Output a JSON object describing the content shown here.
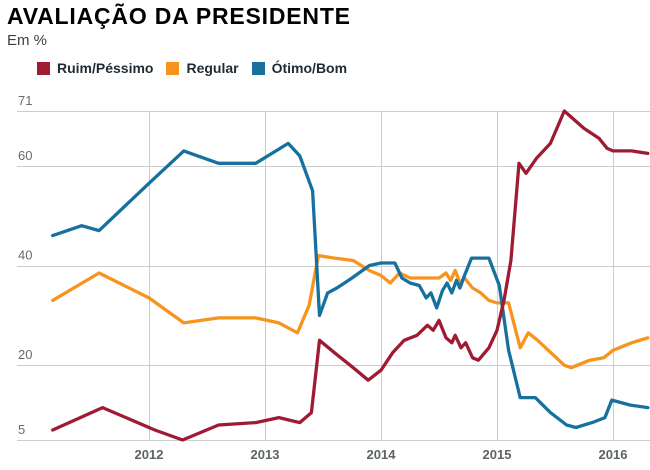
{
  "header": {
    "title": "AVALIAÇÃO DA PRESIDENTE",
    "subtitle": "Em %"
  },
  "legend": [
    {
      "label": "Ruim/Péssimo",
      "color": "#9f1b33"
    },
    {
      "label": "Regular",
      "color": "#f7941e"
    },
    {
      "label": "Ótimo/Bom",
      "color": "#16719e"
    }
  ],
  "chart_data": {
    "type": "line",
    "title": "AVALIAÇÃO DA PRESIDENTE",
    "unit": "Em %",
    "grid": true,
    "legend_position": "top",
    "x_ticks": [
      2012,
      2013,
      2014,
      2015,
      2016
    ],
    "y_ticks": [
      5,
      20,
      40,
      60,
      71
    ],
    "x_range": [
      2011.17,
      2016.3
    ],
    "y_range": [
      5,
      71
    ],
    "series": [
      {
        "id": "ruim-pessimo",
        "name": "Ruim/Péssimo",
        "color": "#9f1b33",
        "points": [
          [
            2011.17,
            7
          ],
          [
            2011.6,
            11.5
          ],
          [
            2012.05,
            7
          ],
          [
            2012.29,
            5
          ],
          [
            2012.6,
            8
          ],
          [
            2012.92,
            8.5
          ],
          [
            2013.12,
            9.5
          ],
          [
            2013.3,
            8.5
          ],
          [
            2013.4,
            10.5
          ],
          [
            2013.47,
            25
          ],
          [
            2013.6,
            22.5
          ],
          [
            2013.76,
            19.5
          ],
          [
            2013.89,
            17
          ],
          [
            2014.0,
            19
          ],
          [
            2014.1,
            22.5
          ],
          [
            2014.2,
            25
          ],
          [
            2014.31,
            26
          ],
          [
            2014.4,
            28
          ],
          [
            2014.45,
            27
          ],
          [
            2014.5,
            29
          ],
          [
            2014.56,
            25.5
          ],
          [
            2014.61,
            24.5
          ],
          [
            2014.64,
            26
          ],
          [
            2014.69,
            23.5
          ],
          [
            2014.73,
            24.5
          ],
          [
            2014.79,
            21.5
          ],
          [
            2014.84,
            21
          ],
          [
            2014.93,
            23.5
          ],
          [
            2015.0,
            27
          ],
          [
            2015.06,
            33
          ],
          [
            2015.12,
            41
          ],
          [
            2015.19,
            60.5
          ],
          [
            2015.25,
            58.5
          ],
          [
            2015.34,
            61.5
          ],
          [
            2015.46,
            64.5
          ],
          [
            2015.58,
            71
          ],
          [
            2015.75,
            67.5
          ],
          [
            2015.88,
            65.5
          ],
          [
            2015.95,
            63.5
          ],
          [
            2016.0,
            63
          ],
          [
            2016.16,
            63
          ],
          [
            2016.3,
            62.5
          ]
        ]
      },
      {
        "id": "regular",
        "name": "Regular",
        "color": "#f7941e",
        "points": [
          [
            2011.17,
            33
          ],
          [
            2011.57,
            38.5
          ],
          [
            2012.0,
            33.5
          ],
          [
            2012.3,
            28.5
          ],
          [
            2012.6,
            29.5
          ],
          [
            2012.92,
            29.5
          ],
          [
            2013.12,
            28.5
          ],
          [
            2013.28,
            26.5
          ],
          [
            2013.38,
            32
          ],
          [
            2013.46,
            42
          ],
          [
            2013.6,
            41.5
          ],
          [
            2013.76,
            41
          ],
          [
            2013.9,
            39
          ],
          [
            2014.0,
            38
          ],
          [
            2014.08,
            36.5
          ],
          [
            2014.16,
            38.5
          ],
          [
            2014.25,
            37.5
          ],
          [
            2014.5,
            37.5
          ],
          [
            2014.56,
            38.5
          ],
          [
            2014.6,
            37
          ],
          [
            2014.64,
            39
          ],
          [
            2014.68,
            36.5
          ],
          [
            2014.72,
            37.5
          ],
          [
            2014.79,
            35.5
          ],
          [
            2014.86,
            34.5
          ],
          [
            2014.93,
            33
          ],
          [
            2015.0,
            32.5
          ],
          [
            2015.1,
            32.5
          ],
          [
            2015.2,
            23.5
          ],
          [
            2015.27,
            26.5
          ],
          [
            2015.35,
            25
          ],
          [
            2015.58,
            20
          ],
          [
            2015.64,
            19.5
          ],
          [
            2015.8,
            21
          ],
          [
            2015.92,
            21.5
          ],
          [
            2016.0,
            23
          ],
          [
            2016.16,
            24.5
          ],
          [
            2016.3,
            25.5
          ]
        ]
      },
      {
        "id": "otimo-bom",
        "name": "Ótimo/Bom",
        "color": "#16719e",
        "points": [
          [
            2011.17,
            46
          ],
          [
            2011.42,
            48
          ],
          [
            2011.57,
            47
          ],
          [
            2012.0,
            56.5
          ],
          [
            2012.3,
            63
          ],
          [
            2012.42,
            62
          ],
          [
            2012.6,
            60.5
          ],
          [
            2012.92,
            60.5
          ],
          [
            2013.2,
            64.5
          ],
          [
            2013.3,
            62
          ],
          [
            2013.41,
            55
          ],
          [
            2013.47,
            30
          ],
          [
            2013.54,
            34.5
          ],
          [
            2013.62,
            35.5
          ],
          [
            2013.75,
            37.5
          ],
          [
            2013.9,
            40
          ],
          [
            2014.0,
            40.5
          ],
          [
            2014.12,
            40.5
          ],
          [
            2014.18,
            37.5
          ],
          [
            2014.25,
            36.5
          ],
          [
            2014.33,
            36
          ],
          [
            2014.39,
            33.5
          ],
          [
            2014.43,
            34.5
          ],
          [
            2014.48,
            31.5
          ],
          [
            2014.53,
            35
          ],
          [
            2014.57,
            36.5
          ],
          [
            2014.61,
            34.5
          ],
          [
            2014.65,
            37
          ],
          [
            2014.68,
            35.5
          ],
          [
            2014.72,
            38
          ],
          [
            2014.78,
            41.5
          ],
          [
            2014.93,
            41.5
          ],
          [
            2015.02,
            36
          ],
          [
            2015.1,
            23
          ],
          [
            2015.2,
            13.5
          ],
          [
            2015.33,
            13.5
          ],
          [
            2015.46,
            10.5
          ],
          [
            2015.6,
            8
          ],
          [
            2015.68,
            7.5
          ],
          [
            2015.82,
            8.5
          ],
          [
            2015.93,
            9.5
          ],
          [
            2015.99,
            13
          ],
          [
            2016.15,
            12
          ],
          [
            2016.3,
            11.5
          ]
        ]
      }
    ]
  }
}
